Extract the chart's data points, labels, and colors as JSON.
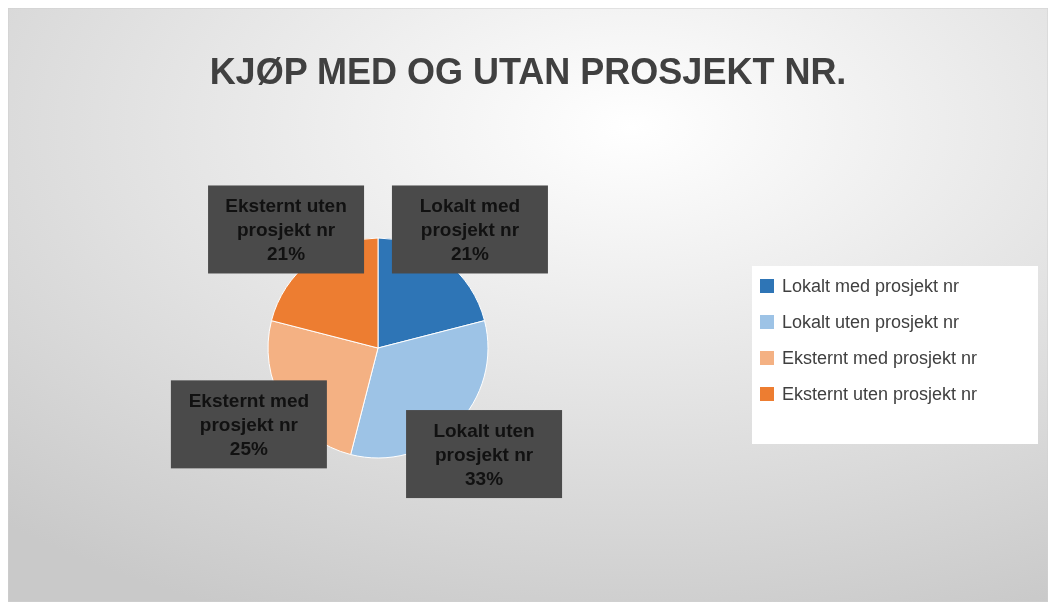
{
  "chart_data": {
    "type": "pie",
    "title": "KJØP MED OG UTAN PROSJEKT NR.",
    "categories": [
      "Lokalt med prosjekt nr",
      "Lokalt uten prosjekt nr",
      "Eksternt med prosjekt nr",
      "Eksternt uten prosjekt nr"
    ],
    "values": [
      21,
      33,
      25,
      21
    ],
    "value_labels": [
      "21%",
      "33%",
      "25%",
      "21%"
    ],
    "colors": [
      "#2e75b6",
      "#9dc3e6",
      "#f4b183",
      "#ed7d31"
    ],
    "legend": "right"
  }
}
